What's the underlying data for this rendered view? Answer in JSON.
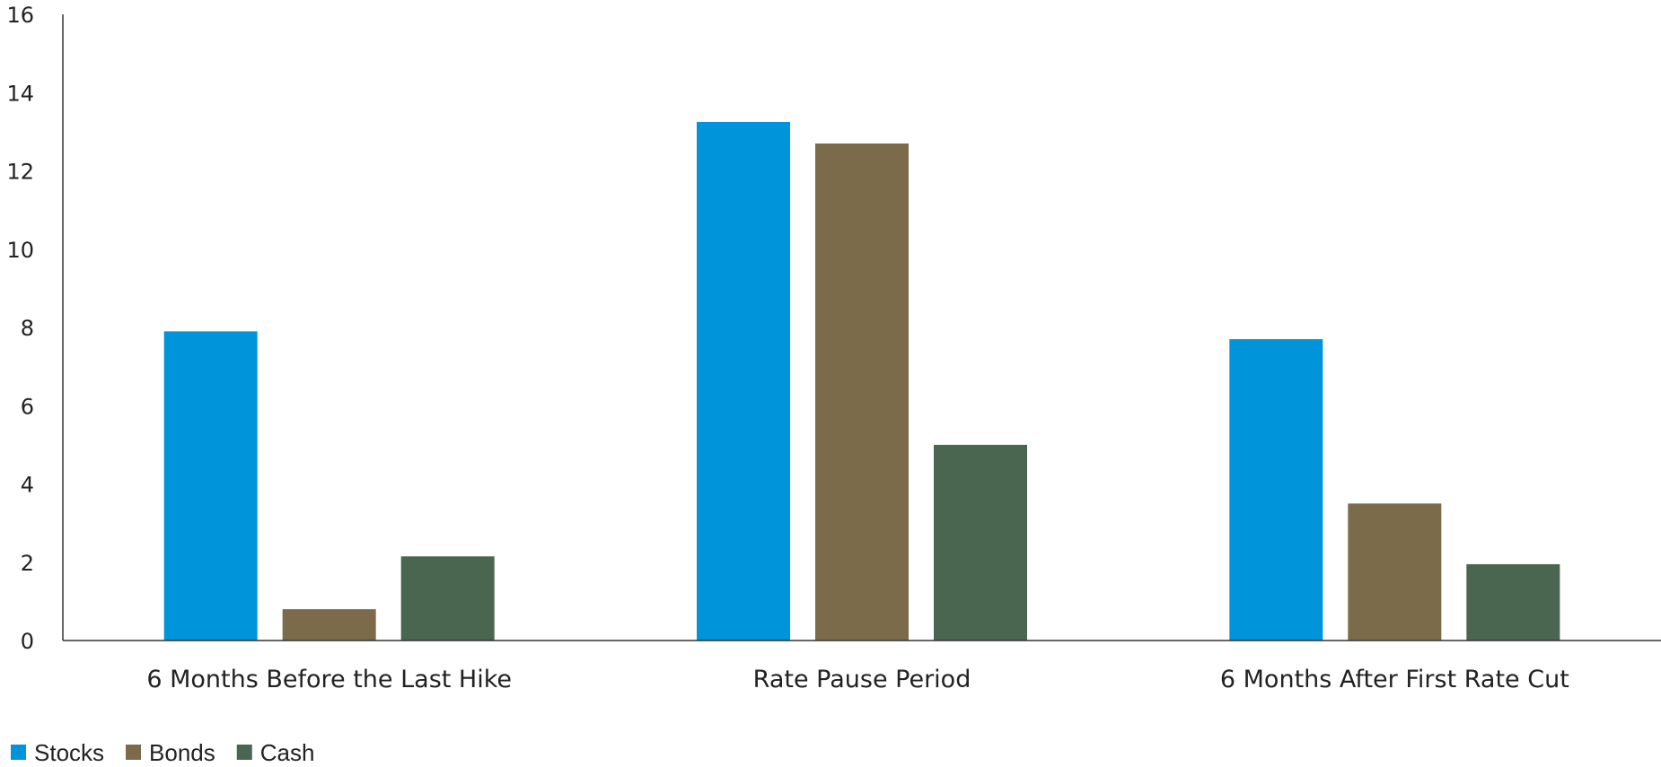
{
  "chart_data": {
    "type": "bar",
    "categories": [
      "6 Months Before the Last Hike",
      "Rate Pause Period",
      "6 Months After First Rate Cut"
    ],
    "series": [
      {
        "name": "Stocks",
        "color": "#0095db",
        "values": [
          7.9,
          13.25,
          7.7
        ]
      },
      {
        "name": "Bonds",
        "color": "#7b6b4a",
        "values": [
          0.8,
          12.7,
          3.5
        ]
      },
      {
        "name": "Cash",
        "color": "#4a6650",
        "values": [
          2.15,
          5.0,
          1.95
        ]
      }
    ],
    "yticks": [
      "0",
      "2",
      "4",
      "6",
      "8",
      "10",
      "12",
      "14",
      "16"
    ],
    "ylim": [
      0,
      16
    ],
    "grid": false,
    "legend": "bottom-left"
  }
}
